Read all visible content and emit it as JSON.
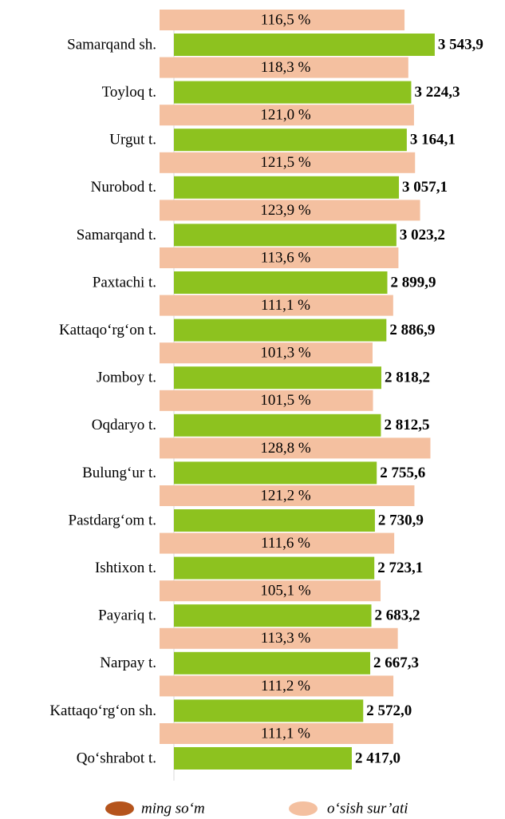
{
  "chart_data": {
    "type": "bar",
    "orientation": "horizontal",
    "categories": [
      "Samarqand sh.",
      "Toyloq t.",
      "Urgut t.",
      "Nurobod t.",
      "Samarqand t.",
      "Paxtachi t.",
      "Kattaqo‘rg‘on t.",
      "Jomboy t.",
      "Oqdaryo t.",
      "Bulung‘ur t.",
      "Pastdarg‘om t.",
      "Ishtixon t.",
      "Payariq t.",
      "Narpay t.",
      "Kattaqo‘rg‘on sh.",
      "Qo‘shrabot t."
    ],
    "xlim": [
      0,
      4000
    ],
    "x2lim": [
      0,
      140
    ],
    "series": [
      {
        "name": "ming so‘m",
        "color": "#b5541c",
        "bar_color": "#8dc21f",
        "values": [
          3543.9,
          3224.3,
          3164.1,
          3057.1,
          3023.2,
          2899.9,
          2886.9,
          2818.2,
          2812.5,
          2755.6,
          2730.9,
          2723.1,
          2683.2,
          2667.3,
          2572.0,
          2417.0
        ],
        "value_labels": [
          "3 543,9",
          "3 224,3",
          "3 164,1",
          "3 057,1",
          "3 023,2",
          "2 899,9",
          "2 886,9",
          "2 818,2",
          "2 812,5",
          "2 755,6",
          "2 730,9",
          "2 723,1",
          "2 683,2",
          "2 667,3",
          "2 572,0",
          "2 417,0"
        ]
      },
      {
        "name": "o‘sish sur’ati",
        "color": "#f4c0a0",
        "axis": "x2",
        "values": [
          116.5,
          118.3,
          121.0,
          121.5,
          123.9,
          113.6,
          111.1,
          101.3,
          101.5,
          128.8,
          121.2,
          111.6,
          105.1,
          113.3,
          111.2,
          111.1
        ],
        "value_labels": [
          "116,5 %",
          "118,3 %",
          "121,0 %",
          "121,5 %",
          "123,9 %",
          "113,6 %",
          "111,1 %",
          "101,3 %",
          "101,5 %",
          "128,8 %",
          "121,2 %",
          "111,6 %",
          "105,1 %",
          "113,3 %",
          "111,2 %",
          "111,1 %"
        ]
      }
    ]
  }
}
